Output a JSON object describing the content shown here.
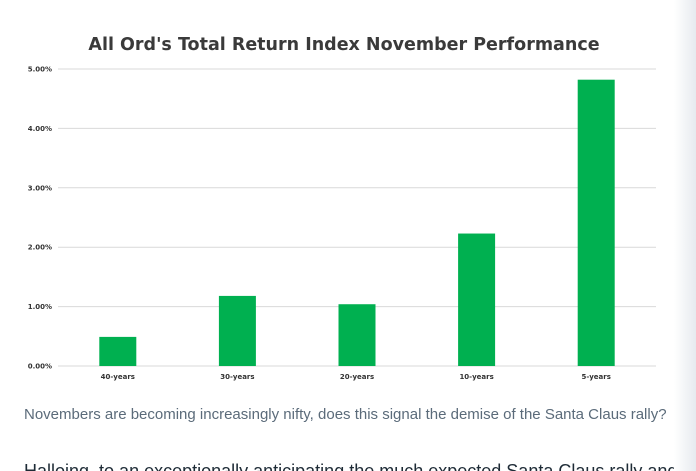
{
  "chart_data": {
    "type": "bar",
    "title": "All Ord's Total Return Index November Performance",
    "categories": [
      "40-years",
      "30-years",
      "20-years",
      "10-years",
      "5-years"
    ],
    "values": [
      0.49,
      1.18,
      1.04,
      2.23,
      4.82
    ],
    "value_format": "percent",
    "xlabel": "",
    "ylabel": "",
    "ylim": [
      0,
      5
    ],
    "yticks": [
      "0.00%",
      "1.00%",
      "2.00%",
      "3.00%",
      "4.00%",
      "5.00%"
    ],
    "grid": true,
    "legend": "none",
    "bar_color": "#00b050",
    "grid_color": "#d9d9d9"
  },
  "caption": "Novembers are becoming increasingly nifty, does this signal the demise of the Santa Claus rally?",
  "body_text": "Halloing, to an exceptionally anticipating the much expected Santa Claus rally and"
}
